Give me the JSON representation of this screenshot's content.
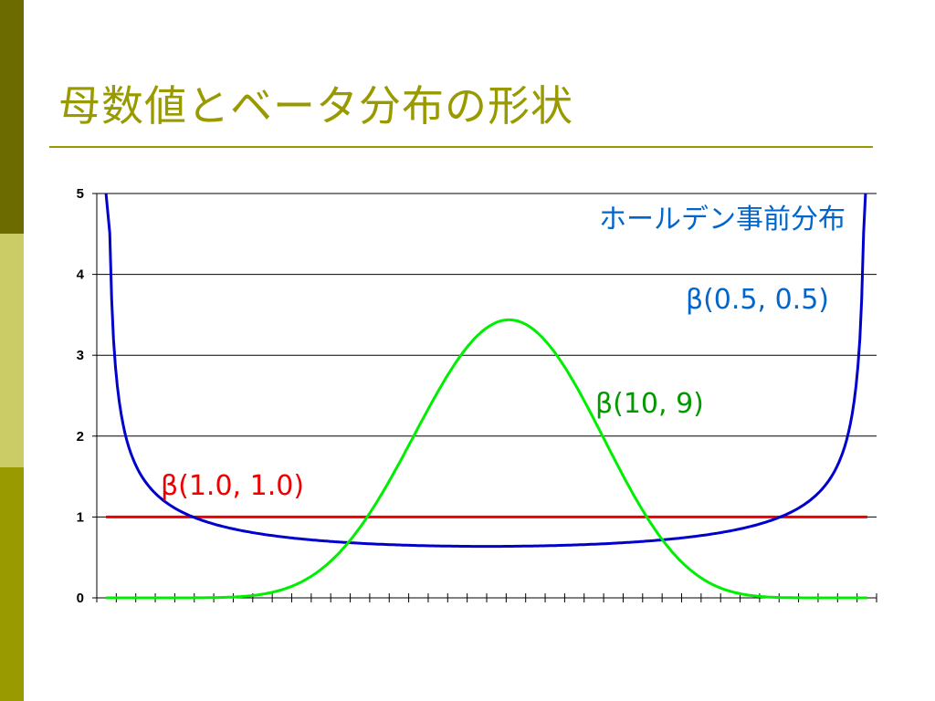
{
  "slide": {
    "title": "母数値とベータ分布の形状"
  },
  "chart_data": {
    "type": "line",
    "ylim": [
      0,
      5
    ],
    "xlim": [
      0,
      1
    ],
    "yticks": [
      "0",
      "1",
      "2",
      "3",
      "4",
      "5"
    ],
    "grid": true,
    "annotations": {
      "holden": "ホールデン事前分布"
    },
    "series": [
      {
        "name": "β(0.5, 0.5)",
        "color": "#0000cc",
        "alpha": 0.5,
        "beta": 0.5
      },
      {
        "name": "β(10, 9)",
        "color": "#00ee00",
        "alpha": 10,
        "beta": 9
      },
      {
        "name": "β(1.0, 1.0)",
        "color": "#ee0000",
        "alpha": 1,
        "beta": 1
      }
    ]
  },
  "colors": {
    "title": "#999900",
    "annotation_blue": "#0066cc",
    "label_green": "#009900",
    "label_red": "#ee0000"
  }
}
